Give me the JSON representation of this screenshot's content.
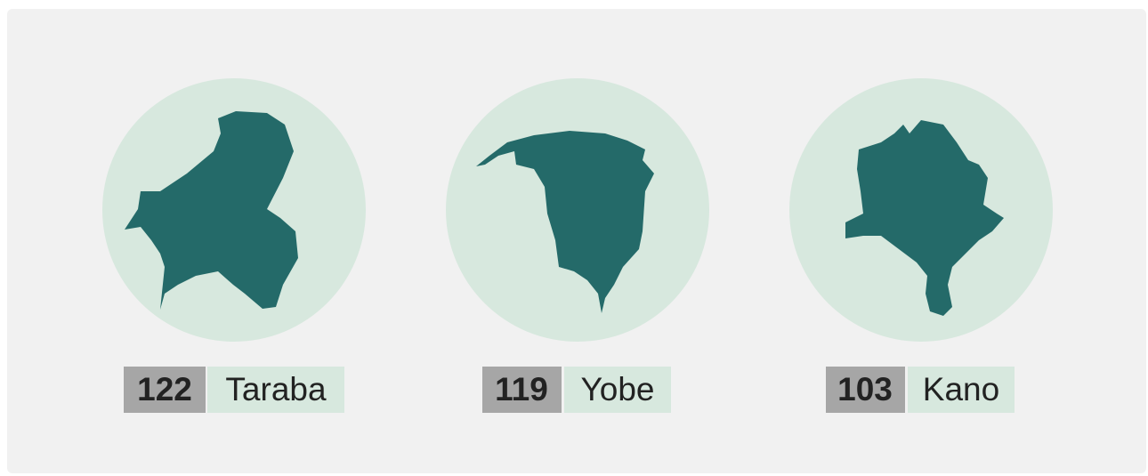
{
  "items": [
    {
      "value": 122,
      "name": "Taraba"
    },
    {
      "value": 119,
      "name": "Yobe"
    },
    {
      "value": 103,
      "name": "Kano"
    }
  ]
}
